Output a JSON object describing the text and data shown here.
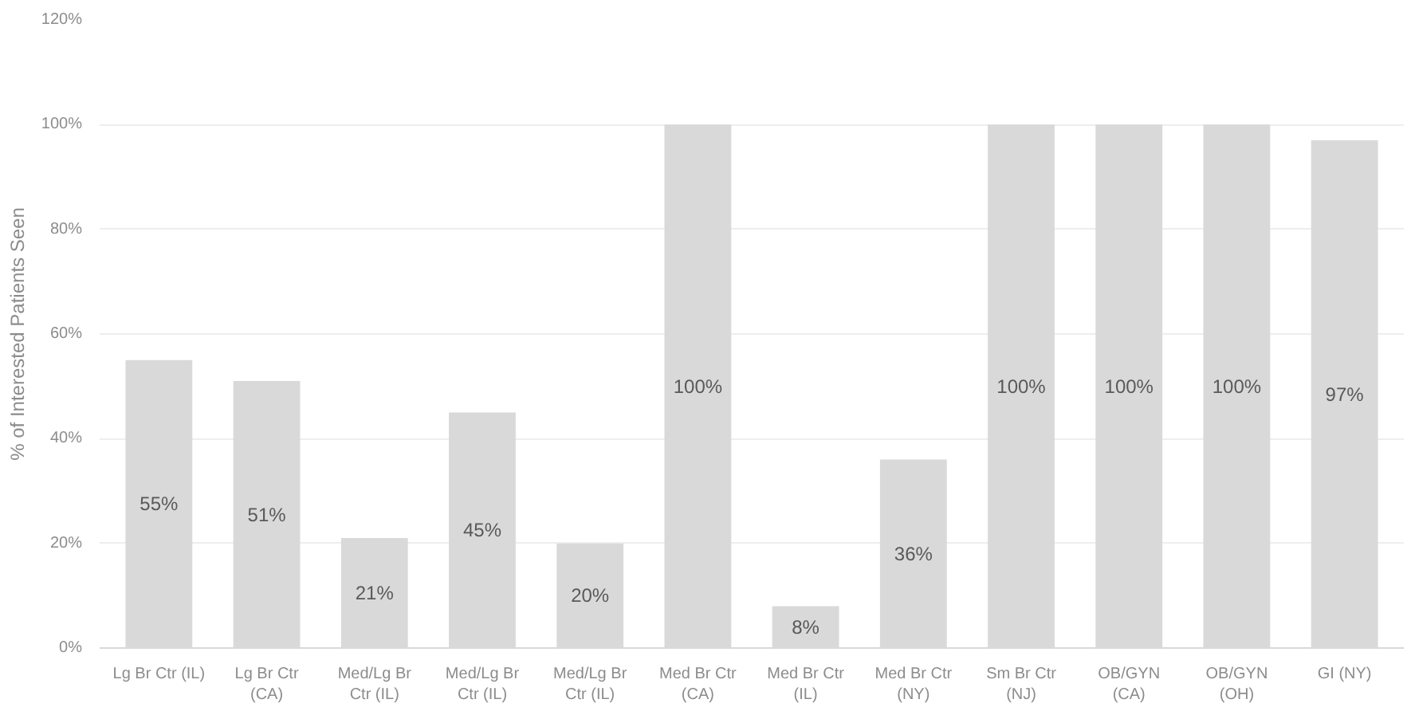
{
  "chart_data": {
    "type": "bar",
    "ylabel": "% of Interested Patients Seen",
    "categories": [
      "Lg Br Ctr (IL)",
      "Lg Br Ctr\n(CA)",
      "Med/Lg Br\nCtr (IL)",
      "Med/Lg Br\nCtr (IL)",
      "Med/Lg Br\nCtr (IL)",
      "Med Br Ctr\n(CA)",
      "Med Br Ctr\n(IL)",
      "Med Br Ctr\n(NY)",
      "Sm Br Ctr\n(NJ)",
      "OB/GYN\n(CA)",
      "OB/GYN\n(OH)",
      "GI (NY)"
    ],
    "values": [
      55,
      51,
      21,
      45,
      20,
      100,
      8,
      36,
      100,
      100,
      100,
      97
    ],
    "value_labels": [
      "55%",
      "51%",
      "21%",
      "45%",
      "20%",
      "100%",
      "8%",
      "36%",
      "100%",
      "100%",
      "100%",
      "97%"
    ],
    "color": "#d9d9d9",
    "ylim": [
      0,
      120
    ],
    "yticks": [
      {
        "value": 0,
        "label": "0%"
      },
      {
        "value": 20,
        "label": "20%"
      },
      {
        "value": 40,
        "label": "40%"
      },
      {
        "value": 60,
        "label": "60%"
      },
      {
        "value": 80,
        "label": "80%"
      },
      {
        "value": 100,
        "label": "100%"
      },
      {
        "value": 120,
        "label": "120%"
      }
    ],
    "grid": "y"
  }
}
